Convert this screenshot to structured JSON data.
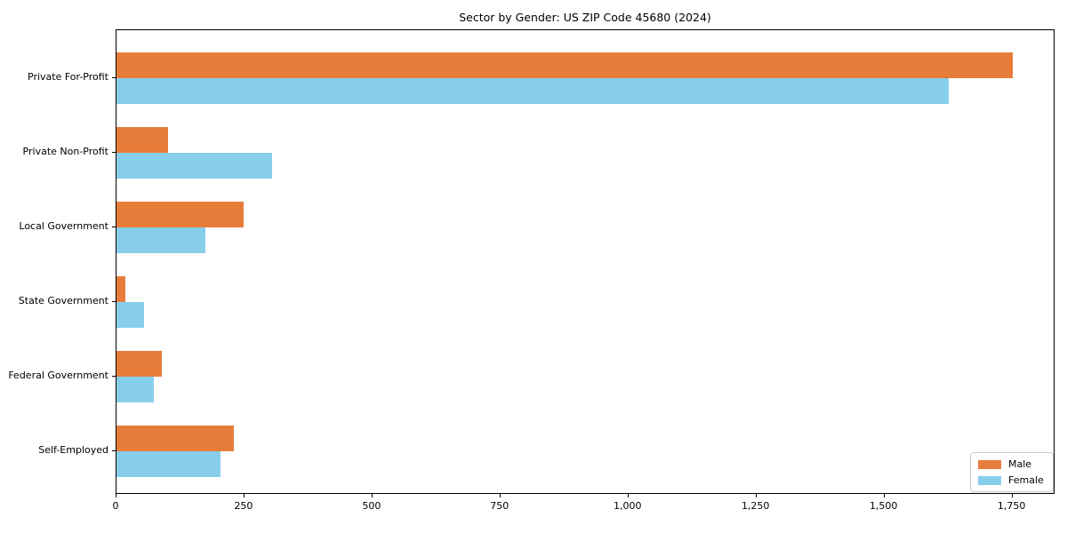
{
  "title": "Sector by Gender: US ZIP Code 45680 (2024)",
  "chart_data": {
    "type": "bar",
    "orientation": "horizontal",
    "title": "Sector by Gender: US ZIP Code 45680 (2024)",
    "categories": [
      "Private For-Profit",
      "Private Non-Profit",
      "Local Government",
      "State Government",
      "Federal Government",
      "Self-Employed"
    ],
    "series": [
      {
        "name": "Male",
        "color": "#E87D3B",
        "values": [
          1750,
          100,
          248,
          18,
          88,
          229
        ]
      },
      {
        "name": "Female",
        "color": "#87CEEB",
        "values": [
          1625,
          303,
          173,
          54,
          72,
          203
        ]
      }
    ],
    "xlabel": "",
    "ylabel": "",
    "xlim": [
      0,
      1834
    ],
    "xticks": [
      0,
      250,
      500,
      750,
      1000,
      1250,
      1500,
      1750
    ],
    "xtick_labels": [
      "0",
      "250",
      "500",
      "750",
      "1,000",
      "1,250",
      "1,500",
      "1,750"
    ],
    "grid": false,
    "legend": {
      "position": "lower right",
      "entries": [
        "Male",
        "Female"
      ]
    }
  }
}
